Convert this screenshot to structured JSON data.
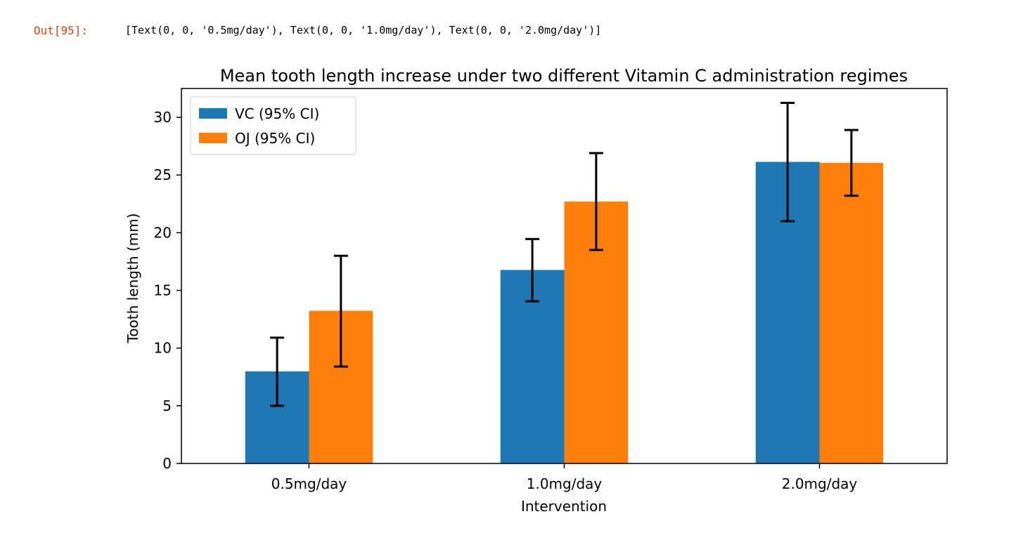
{
  "cell": {
    "prompt": "Out[95]:",
    "output_text": "[Text(0, 0, '0.5mg/day'), Text(0, 0, '1.0mg/day'), Text(0, 0, '2.0mg/day')]"
  },
  "chart_data": {
    "type": "bar",
    "title": "Mean tooth length increase under two different Vitamin C administration regimes",
    "xlabel": "Intervention",
    "ylabel": "Tooth length (mm)",
    "categories": [
      "0.5mg/day",
      "1.0mg/day",
      "2.0mg/day"
    ],
    "ylim": [
      0,
      32.5
    ],
    "yticks": [
      0,
      5,
      10,
      15,
      20,
      25,
      30
    ],
    "grid": false,
    "legend_position": "top-left",
    "series": [
      {
        "name": "VC (95% CI)",
        "color": "#1f77b4",
        "values": [
          7.98,
          16.77,
          26.14
        ],
        "ci_low": [
          5.0,
          14.05,
          21.0
        ],
        "ci_high": [
          10.9,
          19.45,
          31.25
        ]
      },
      {
        "name": "OJ (95% CI)",
        "color": "#ff7f0e",
        "values": [
          13.23,
          22.7,
          26.06
        ],
        "ci_low": [
          8.4,
          18.5,
          23.2
        ],
        "ci_high": [
          18.0,
          26.9,
          28.9
        ]
      }
    ]
  }
}
